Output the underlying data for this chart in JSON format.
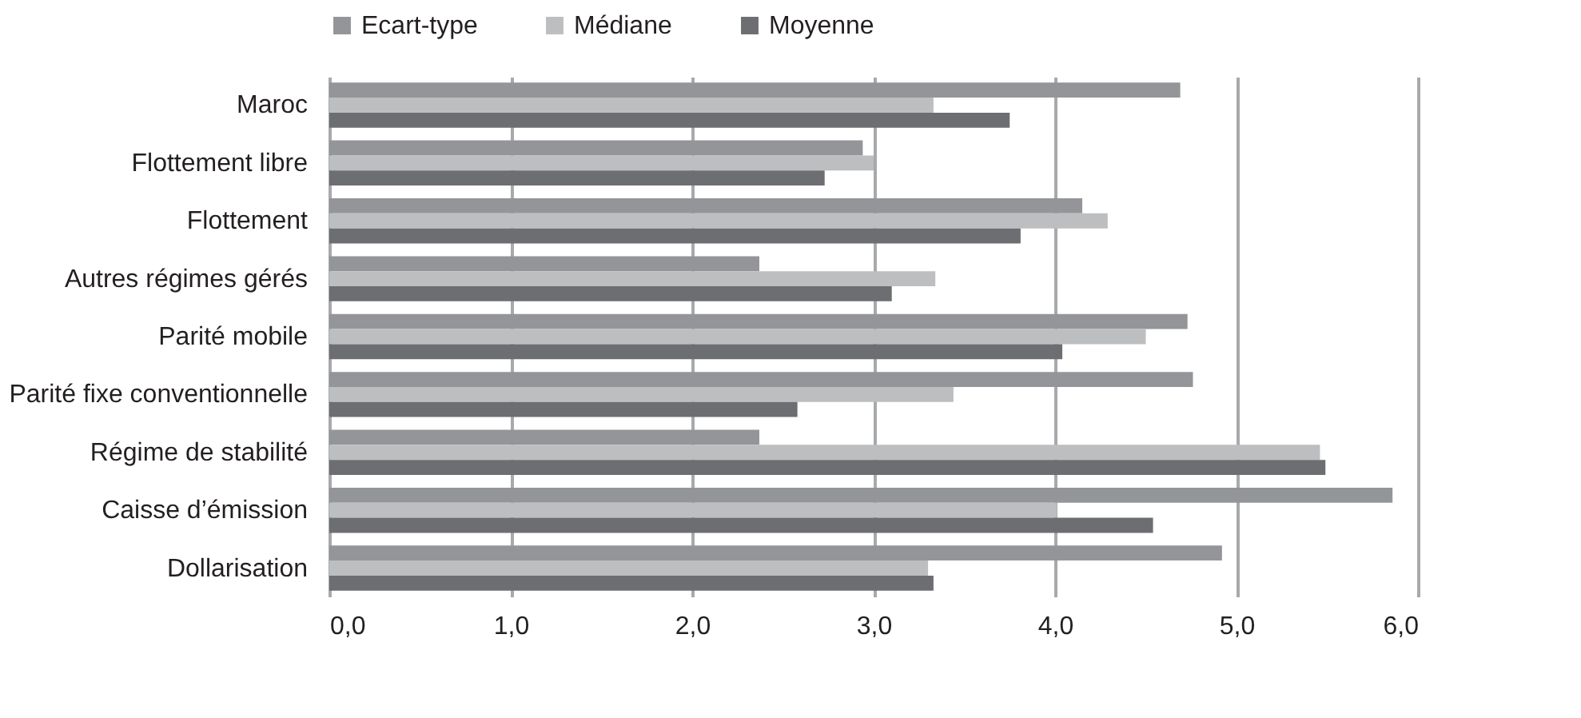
{
  "chart_data": {
    "type": "bar",
    "orientation": "horizontal",
    "categories": [
      "Maroc",
      "Flottement libre",
      "Flottement",
      "Autres régimes gérés",
      "Parité mobile",
      "Parité fixe conventionnelle",
      "Régime de stabilité",
      "Caisse d’émission",
      "Dollarisation"
    ],
    "series": [
      {
        "name": "Ecart-type",
        "color": "#939598",
        "values": [
          4.69,
          2.94,
          4.15,
          2.37,
          4.73,
          4.76,
          2.37,
          5.86,
          4.92
        ]
      },
      {
        "name": "Médiane",
        "color": "#bcbec0",
        "values": [
          3.33,
          3.0,
          4.29,
          3.34,
          4.5,
          3.44,
          5.46,
          4.01,
          3.3
        ]
      },
      {
        "name": "Moyenne",
        "color": "#6d6e71",
        "values": [
          3.75,
          2.73,
          3.81,
          3.1,
          4.04,
          2.58,
          5.49,
          4.54,
          3.33
        ]
      }
    ],
    "xlim": [
      0,
      6
    ],
    "xticks": [
      {
        "value": 0,
        "label": "0,0"
      },
      {
        "value": 1,
        "label": "1,0"
      },
      {
        "value": 2,
        "label": "2,0"
      },
      {
        "value": 3,
        "label": "3,0"
      },
      {
        "value": 4,
        "label": "4,0"
      },
      {
        "value": 5,
        "label": "5,0"
      },
      {
        "value": 6,
        "label": "6,0"
      }
    ],
    "grid": "x",
    "legend": "top"
  }
}
